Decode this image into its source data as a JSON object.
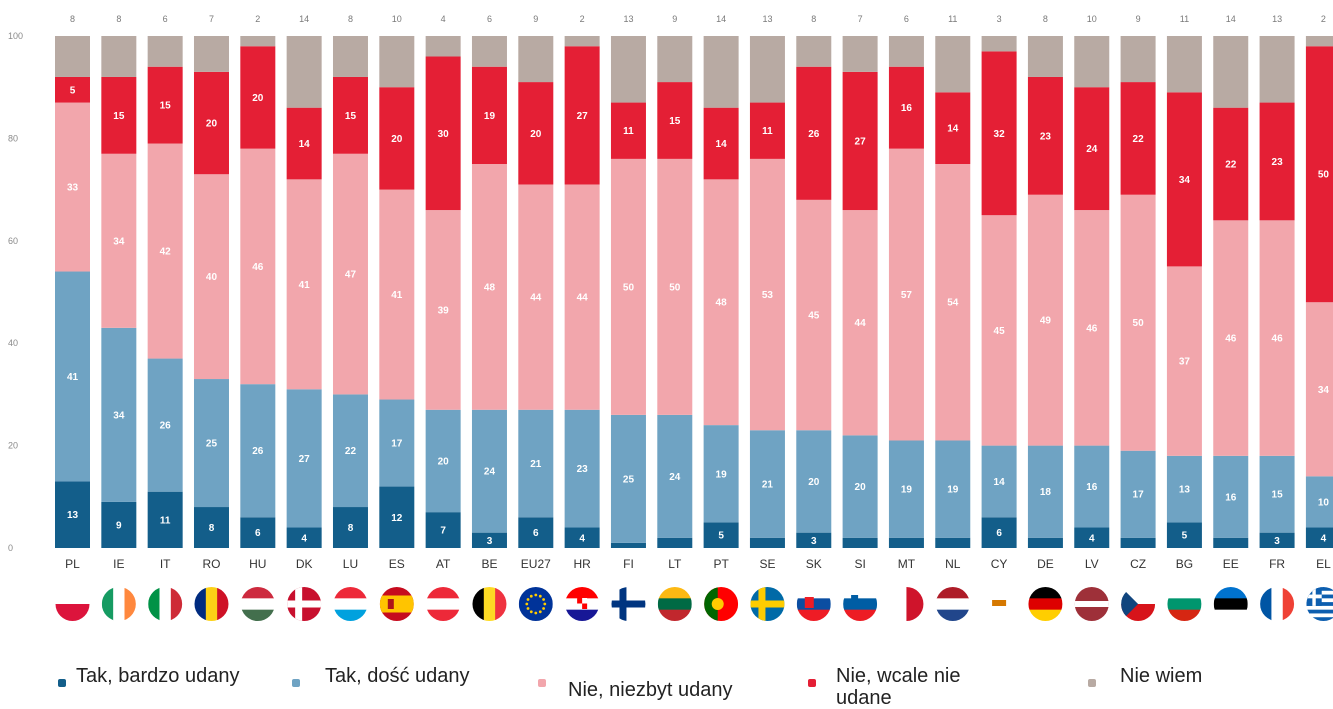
{
  "chart_data": {
    "type": "bar",
    "stacked": true,
    "ylim": [
      0,
      100
    ],
    "yticks": [
      0,
      20,
      40,
      60,
      80,
      100
    ],
    "categories": [
      "PL",
      "IE",
      "IT",
      "RO",
      "HU",
      "DK",
      "LU",
      "ES",
      "AT",
      "BE",
      "EU27",
      "HR",
      "FI",
      "LT",
      "PT",
      "SE",
      "SK",
      "SI",
      "MT",
      "NL",
      "CY",
      "DE",
      "LV",
      "CZ",
      "BG",
      "EE",
      "FR",
      "EL"
    ],
    "series": [
      {
        "name": "Tak, bardzo udany",
        "color": "#135e8a",
        "values": [
          13,
          9,
          11,
          8,
          6,
          4,
          8,
          12,
          7,
          3,
          6,
          4,
          1,
          2,
          5,
          2,
          3,
          2,
          2,
          2,
          6,
          2,
          4,
          2,
          5,
          2,
          3,
          4
        ]
      },
      {
        "name": "Tak, dość udany",
        "color": "#6fa3c3",
        "values": [
          41,
          34,
          26,
          25,
          26,
          27,
          22,
          17,
          20,
          24,
          21,
          23,
          25,
          24,
          19,
          21,
          20,
          20,
          19,
          19,
          14,
          18,
          16,
          17,
          13,
          16,
          15,
          10
        ]
      },
      {
        "name": "Nie, niezbyt udany",
        "color": "#f2a6ac",
        "values": [
          33,
          34,
          42,
          40,
          46,
          41,
          47,
          41,
          39,
          48,
          44,
          44,
          50,
          50,
          48,
          53,
          45,
          44,
          57,
          54,
          45,
          49,
          46,
          50,
          37,
          46,
          46,
          34
        ]
      },
      {
        "name": "Nie, wcale nie udane",
        "color": "#e41f35",
        "values": [
          5,
          15,
          15,
          20,
          20,
          14,
          15,
          20,
          30,
          19,
          20,
          27,
          11,
          15,
          14,
          11,
          26,
          27,
          16,
          14,
          32,
          23,
          24,
          22,
          34,
          22,
          23,
          50
        ]
      },
      {
        "name": "Nie wiem",
        "color": "#b8aaa3",
        "values": [
          8,
          8,
          6,
          7,
          2,
          14,
          8,
          10,
          4,
          6,
          9,
          2,
          13,
          9,
          14,
          13,
          8,
          7,
          6,
          11,
          3,
          8,
          10,
          9,
          11,
          14,
          13,
          2
        ]
      }
    ],
    "top_labels": [
      "8",
      "8",
      "6",
      "7",
      "2",
      "14",
      "8",
      "10",
      "4",
      "6",
      "9",
      "2",
      "13",
      "9",
      "14",
      "13",
      "8",
      "7",
      "6",
      "11",
      "3",
      "8",
      "10",
      "9",
      "11",
      "14",
      "13",
      "2"
    ],
    "bar_labels": [
      [
        "13",
        "41",
        "33",
        "5"
      ],
      [
        "9",
        "34",
        "34",
        "15"
      ],
      [
        "11",
        "26",
        "42",
        "15"
      ],
      [
        "8",
        "25",
        "40",
        "20"
      ],
      [
        "6",
        "26",
        "46",
        "20"
      ],
      [
        "4",
        "27",
        "41",
        "14"
      ],
      [
        "8",
        "22",
        "47",
        "15"
      ],
      [
        "12",
        "17",
        "41",
        "20"
      ],
      [
        "7",
        "20",
        "39",
        "30"
      ],
      [
        "3",
        "24",
        "48",
        "19"
      ],
      [
        "6",
        "21",
        "44",
        "20"
      ],
      [
        "4",
        "23",
        "44",
        "27"
      ],
      [
        "",
        "25",
        "50",
        "11"
      ],
      [
        "",
        "24",
        "50",
        "15"
      ],
      [
        "5",
        "19",
        "48",
        "14"
      ],
      [
        "",
        "21",
        "53",
        "11"
      ],
      [
        "3",
        "20",
        "45",
        "26"
      ],
      [
        "",
        "20",
        "44",
        "27"
      ],
      [
        "",
        "19",
        "57",
        "16"
      ],
      [
        "",
        "19",
        "54",
        "14"
      ],
      [
        "6",
        "14",
        "45",
        "32"
      ],
      [
        "",
        "18",
        "49",
        "23"
      ],
      [
        "4",
        "16",
        "46",
        "24"
      ],
      [
        "",
        "17",
        "50",
        "22"
      ],
      [
        "5",
        "13",
        "37",
        "34"
      ],
      [
        "",
        "16",
        "46",
        "22"
      ],
      [
        "3",
        "15",
        "46",
        "23"
      ],
      [
        "4",
        "10",
        "34",
        "50"
      ]
    ],
    "legend": [
      {
        "label": "Tak, bardzo udany",
        "color": "#135e8a"
      },
      {
        "label": "Tak, dość udany",
        "color": "#6fa3c3"
      },
      {
        "label": "Nie, niezbyt udany",
        "color": "#f2a6ac"
      },
      {
        "label": "Nie, wcale nie udane",
        "color": "#e41f35"
      },
      {
        "label": "Nie wiem",
        "color": "#b8aaa3"
      }
    ],
    "flags": [
      "PL",
      "IE",
      "IT",
      "RO",
      "HU",
      "DK",
      "LU",
      "ES",
      "AT",
      "BE",
      "EU27",
      "HR",
      "FI",
      "LT",
      "PT",
      "SE",
      "SK",
      "SI",
      "MT",
      "NL",
      "CY",
      "DE",
      "LV",
      "CZ",
      "BG",
      "EE",
      "FR",
      "EL"
    ],
    "title": "",
    "xlabel": "",
    "ylabel": ""
  }
}
